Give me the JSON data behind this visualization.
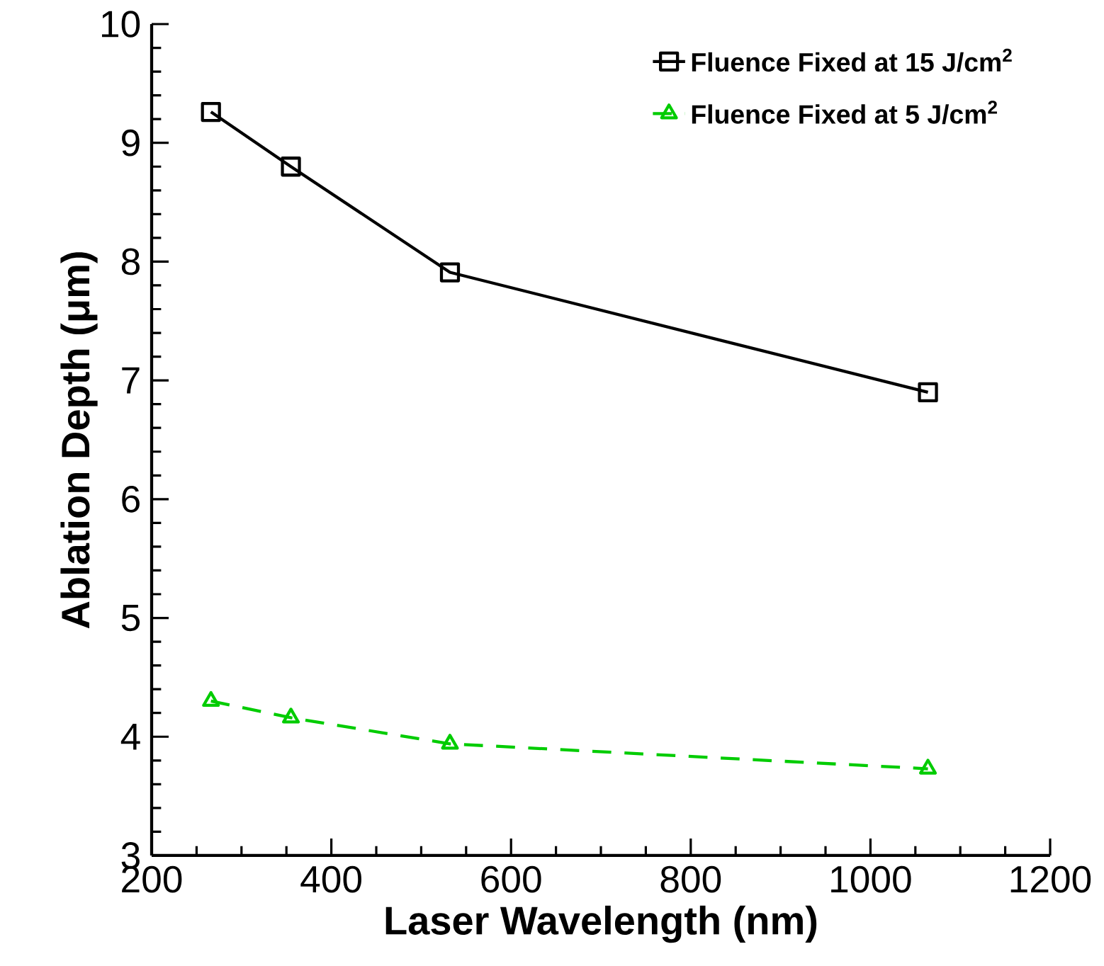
{
  "chart_data": {
    "type": "line",
    "xlabel": "Laser Wavelength (nm)",
    "ylabel": "Ablation Depth (μm)",
    "x": [
      266,
      355,
      532,
      1064
    ],
    "series": [
      {
        "name": "Fluence Fixed at 15 J/cm$^{2}$",
        "color": "#000000",
        "marker": "square",
        "line_style": "solid",
        "values": [
          9.26,
          8.8,
          7.91,
          6.9
        ]
      },
      {
        "name": "Fluence Fixed at 5 J/cm$^{2}$",
        "color": "#00cc00",
        "marker": "triangle",
        "line_style": "dashed",
        "values": [
          4.3,
          4.16,
          3.94,
          3.73
        ]
      }
    ],
    "xlim": [
      200,
      1200
    ],
    "xticks": [
      200,
      400,
      600,
      800,
      1000,
      1200
    ],
    "ylim": [
      3,
      10
    ],
    "yticks": [
      3,
      4,
      5,
      6,
      7,
      8,
      9,
      10
    ],
    "grid": false,
    "legend": "top right"
  }
}
